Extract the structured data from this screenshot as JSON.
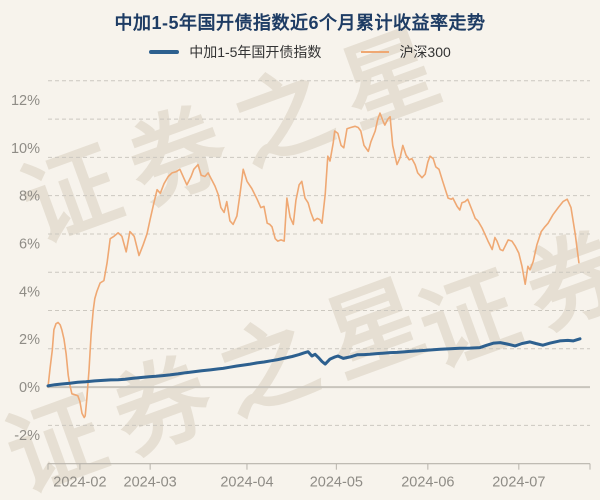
{
  "title": "中加1-5年国开债指数近6个月累计收益率走势",
  "watermark": {
    "text": "证券之星"
  },
  "legend": [
    {
      "label": "中加1-5年国开债指数",
      "color": "#2d608f"
    },
    {
      "label": "沪深300",
      "color": "#efa873"
    }
  ],
  "chart_data": {
    "type": "line",
    "title": "中加1-5年国开债指数近6个月累计收益率走势",
    "unit": "%",
    "legend_position": "top",
    "grid": "dashed horizontal",
    "y_axis": {
      "unit": "%",
      "ticks": [
        {
          "label": "12%",
          "value": 12
        },
        {
          "label": "10%",
          "value": 10
        },
        {
          "label": "8%",
          "value": 8
        },
        {
          "label": "6%",
          "value": 6
        },
        {
          "label": "4%",
          "value": 4
        },
        {
          "label": "2%",
          "value": 2
        },
        {
          "label": "0%",
          "value": 0
        },
        {
          "label": "-2%",
          "value": -2
        }
      ],
      "grid_top": 12.8,
      "grid_bottom": -3.2,
      "grid_interval": 1.6,
      "zero_line": "solid"
    },
    "x_axis": {
      "note": "f = fraction of plotted time range (late Jan 2024 to late Jul 2024)",
      "ticks": [
        {
          "label": "2024-02",
          "f": 0.06
        },
        {
          "label": "2024-03",
          "f": 0.192
        },
        {
          "label": "2024-04",
          "f": 0.374
        },
        {
          "label": "2024-05",
          "f": 0.542
        },
        {
          "label": "2024-06",
          "f": 0.714
        },
        {
          "label": "2024-07",
          "f": 0.885
        }
      ]
    },
    "series": [
      {
        "id": "csi300",
        "name": "沪深300",
        "color": "#efa873",
        "width": 1.6,
        "points": [
          [
            0,
            0
          ],
          [
            0.004,
            0.8
          ],
          [
            0.008,
            1.55
          ],
          [
            0.011,
            2.4
          ],
          [
            0.015,
            2.65
          ],
          [
            0.019,
            2.7
          ],
          [
            0.023,
            2.6
          ],
          [
            0.026,
            2.4
          ],
          [
            0.03,
            2
          ],
          [
            0.034,
            1.4
          ],
          [
            0.038,
            0.5
          ],
          [
            0.041,
            0.1
          ],
          [
            0.045,
            -0.28
          ],
          [
            0.051,
            -0.32
          ],
          [
            0.056,
            -0.36
          ],
          [
            0.06,
            -0.6
          ],
          [
            0.064,
            -1.1
          ],
          [
            0.068,
            -1.27
          ],
          [
            0.07,
            -1.2
          ],
          [
            0.073,
            -0.5
          ],
          [
            0.077,
            0.7
          ],
          [
            0.081,
            2.2
          ],
          [
            0.085,
            3.2
          ],
          [
            0.088,
            3.7
          ],
          [
            0.092,
            4
          ],
          [
            0.098,
            4.35
          ],
          [
            0.105,
            4.45
          ],
          [
            0.111,
            5.2
          ],
          [
            0.117,
            6.2
          ],
          [
            0.124,
            6.3
          ],
          [
            0.132,
            6.45
          ],
          [
            0.139,
            6.3
          ],
          [
            0.147,
            5.65
          ],
          [
            0.154,
            6.5
          ],
          [
            0.162,
            6.3
          ],
          [
            0.171,
            5.5
          ],
          [
            0.179,
            5.95
          ],
          [
            0.186,
            6.4
          ],
          [
            0.192,
            7
          ],
          [
            0.199,
            7.7
          ],
          [
            0.205,
            8.25
          ],
          [
            0.211,
            8.1
          ],
          [
            0.218,
            8.5
          ],
          [
            0.226,
            8.8
          ],
          [
            0.233,
            8.95
          ],
          [
            0.241,
            9
          ],
          [
            0.248,
            9.1
          ],
          [
            0.256,
            8.7
          ],
          [
            0.261,
            8.45
          ],
          [
            0.269,
            8.8
          ],
          [
            0.274,
            9.1
          ],
          [
            0.282,
            9.3
          ],
          [
            0.288,
            8.85
          ],
          [
            0.295,
            8.8
          ],
          [
            0.301,
            8.95
          ],
          [
            0.308,
            8.65
          ],
          [
            0.314,
            8.4
          ],
          [
            0.32,
            8.05
          ],
          [
            0.325,
            7.5
          ],
          [
            0.331,
            7.3
          ],
          [
            0.336,
            7.75
          ],
          [
            0.342,
            6.95
          ],
          [
            0.348,
            6.8
          ],
          [
            0.355,
            7.15
          ],
          [
            0.361,
            8.1
          ],
          [
            0.367,
            9.1
          ],
          [
            0.374,
            8.6
          ],
          [
            0.383,
            8.3
          ],
          [
            0.393,
            7.85
          ],
          [
            0.4,
            7.5
          ],
          [
            0.406,
            7.55
          ],
          [
            0.412,
            6.85
          ],
          [
            0.417,
            6.8
          ],
          [
            0.421,
            6.7
          ],
          [
            0.427,
            6.2
          ],
          [
            0.432,
            6.1
          ],
          [
            0.438,
            6.15
          ],
          [
            0.444,
            6.1
          ],
          [
            0.449,
            7.9
          ],
          [
            0.455,
            7.1
          ],
          [
            0.461,
            6.8
          ],
          [
            0.466,
            7.8
          ],
          [
            0.472,
            8.45
          ],
          [
            0.477,
            8.6
          ],
          [
            0.483,
            7.9
          ],
          [
            0.489,
            7.7
          ],
          [
            0.494,
            7.3
          ],
          [
            0.5,
            6.95
          ],
          [
            0.506,
            7.05
          ],
          [
            0.511,
            7
          ],
          [
            0.515,
            6.85
          ],
          [
            0.521,
            8.05
          ],
          [
            0.526,
            9.65
          ],
          [
            0.53,
            9.45
          ],
          [
            0.536,
            10.2
          ],
          [
            0.539,
            10.7
          ],
          [
            0.545,
            10.6
          ],
          [
            0.551,
            10.1
          ],
          [
            0.556,
            10
          ],
          [
            0.562,
            10.8
          ],
          [
            0.569,
            10.85
          ],
          [
            0.577,
            10.9
          ],
          [
            0.583,
            10.85
          ],
          [
            0.588,
            10.7
          ],
          [
            0.594,
            10.1
          ],
          [
            0.602,
            9.85
          ],
          [
            0.607,
            10.25
          ],
          [
            0.615,
            10.7
          ],
          [
            0.62,
            11.2
          ],
          [
            0.624,
            11.45
          ],
          [
            0.63,
            11.1
          ],
          [
            0.633,
            10.95
          ],
          [
            0.639,
            11.2
          ],
          [
            0.643,
            11.3
          ],
          [
            0.648,
            10.1
          ],
          [
            0.656,
            9.3
          ],
          [
            0.662,
            9.6
          ],
          [
            0.667,
            10.1
          ],
          [
            0.673,
            9.7
          ],
          [
            0.679,
            9.5
          ],
          [
            0.684,
            9.55
          ],
          [
            0.69,
            9.3
          ],
          [
            0.695,
            8.95
          ],
          [
            0.703,
            8.75
          ],
          [
            0.709,
            8.9
          ],
          [
            0.714,
            9.4
          ],
          [
            0.718,
            9.65
          ],
          [
            0.724,
            9.55
          ],
          [
            0.729,
            9.2
          ],
          [
            0.735,
            9.1
          ],
          [
            0.742,
            8.6
          ],
          [
            0.752,
            7.9
          ],
          [
            0.758,
            7.85
          ],
          [
            0.761,
            7.9
          ],
          [
            0.769,
            7.55
          ],
          [
            0.774,
            7.4
          ],
          [
            0.778,
            7.7
          ],
          [
            0.784,
            7.75
          ],
          [
            0.789,
            7.85
          ],
          [
            0.797,
            7.4
          ],
          [
            0.803,
            7.05
          ],
          [
            0.808,
            6.95
          ],
          [
            0.816,
            6.65
          ],
          [
            0.821,
            6.4
          ],
          [
            0.827,
            6.1
          ],
          [
            0.835,
            5.75
          ],
          [
            0.84,
            6.25
          ],
          [
            0.844,
            6.1
          ],
          [
            0.85,
            5.75
          ],
          [
            0.855,
            5.7
          ],
          [
            0.865,
            6.15
          ],
          [
            0.872,
            6.1
          ],
          [
            0.878,
            5.9
          ],
          [
            0.885,
            5.6
          ],
          [
            0.891,
            5.05
          ],
          [
            0.897,
            4.3
          ],
          [
            0.902,
            5.05
          ],
          [
            0.906,
            4.9
          ],
          [
            0.912,
            5.25
          ],
          [
            0.919,
            5.95
          ],
          [
            0.927,
            6.5
          ],
          [
            0.934,
            6.7
          ],
          [
            0.94,
            6.85
          ],
          [
            0.949,
            7.2
          ],
          [
            0.959,
            7.5
          ],
          [
            0.968,
            7.75
          ],
          [
            0.976,
            7.85
          ],
          [
            0.983,
            7.5
          ],
          [
            0.991,
            6.4
          ],
          [
            0.998,
            5.2
          ]
        ]
      },
      {
        "id": "fund-index",
        "name": "中加1-5年国开债指数",
        "color": "#2d608f",
        "width": 3,
        "points": [
          [
            0,
            0.05
          ],
          [
            0.013,
            0.1
          ],
          [
            0.026,
            0.13
          ],
          [
            0.041,
            0.16
          ],
          [
            0.056,
            0.2
          ],
          [
            0.071,
            0.22
          ],
          [
            0.088,
            0.26
          ],
          [
            0.103,
            0.28
          ],
          [
            0.118,
            0.3
          ],
          [
            0.132,
            0.31
          ],
          [
            0.145,
            0.33
          ],
          [
            0.16,
            0.37
          ],
          [
            0.175,
            0.4
          ],
          [
            0.19,
            0.43
          ],
          [
            0.203,
            0.45
          ],
          [
            0.216,
            0.48
          ],
          [
            0.229,
            0.51
          ],
          [
            0.244,
            0.55
          ],
          [
            0.259,
            0.6
          ],
          [
            0.274,
            0.64
          ],
          [
            0.289,
            0.68
          ],
          [
            0.305,
            0.72
          ],
          [
            0.32,
            0.76
          ],
          [
            0.329,
            0.78
          ],
          [
            0.342,
            0.83
          ],
          [
            0.355,
            0.88
          ],
          [
            0.367,
            0.92
          ],
          [
            0.38,
            0.96
          ],
          [
            0.393,
            1.01
          ],
          [
            0.406,
            1.05
          ],
          [
            0.419,
            1.1
          ],
          [
            0.432,
            1.15
          ],
          [
            0.445,
            1.21
          ],
          [
            0.459,
            1.28
          ],
          [
            0.472,
            1.36
          ],
          [
            0.481,
            1.43
          ],
          [
            0.489,
            1.48
          ],
          [
            0.496,
            1.3
          ],
          [
            0.502,
            1.37
          ],
          [
            0.508,
            1.24
          ],
          [
            0.515,
            1.07
          ],
          [
            0.521,
            0.96
          ],
          [
            0.53,
            1.17
          ],
          [
            0.538,
            1.25
          ],
          [
            0.545,
            1.3
          ],
          [
            0.555,
            1.2
          ],
          [
            0.568,
            1.26
          ],
          [
            0.581,
            1.35
          ],
          [
            0.594,
            1.36
          ],
          [
            0.605,
            1.37
          ],
          [
            0.618,
            1.4
          ],
          [
            0.632,
            1.42
          ],
          [
            0.643,
            1.44
          ],
          [
            0.656,
            1.45
          ],
          [
            0.669,
            1.47
          ],
          [
            0.68,
            1.49
          ],
          [
            0.699,
            1.52
          ],
          [
            0.718,
            1.55
          ],
          [
            0.737,
            1.58
          ],
          [
            0.756,
            1.6
          ],
          [
            0.774,
            1.62
          ],
          [
            0.793,
            1.63
          ],
          [
            0.812,
            1.65
          ],
          [
            0.825,
            1.75
          ],
          [
            0.838,
            1.84
          ],
          [
            0.85,
            1.86
          ],
          [
            0.863,
            1.8
          ],
          [
            0.878,
            1.72
          ],
          [
            0.891,
            1.82
          ],
          [
            0.906,
            1.89
          ],
          [
            0.917,
            1.82
          ],
          [
            0.93,
            1.75
          ],
          [
            0.944,
            1.84
          ],
          [
            0.962,
            1.93
          ],
          [
            0.977,
            1.95
          ],
          [
            0.987,
            1.93
          ],
          [
            1,
            2.02
          ]
        ]
      }
    ]
  }
}
